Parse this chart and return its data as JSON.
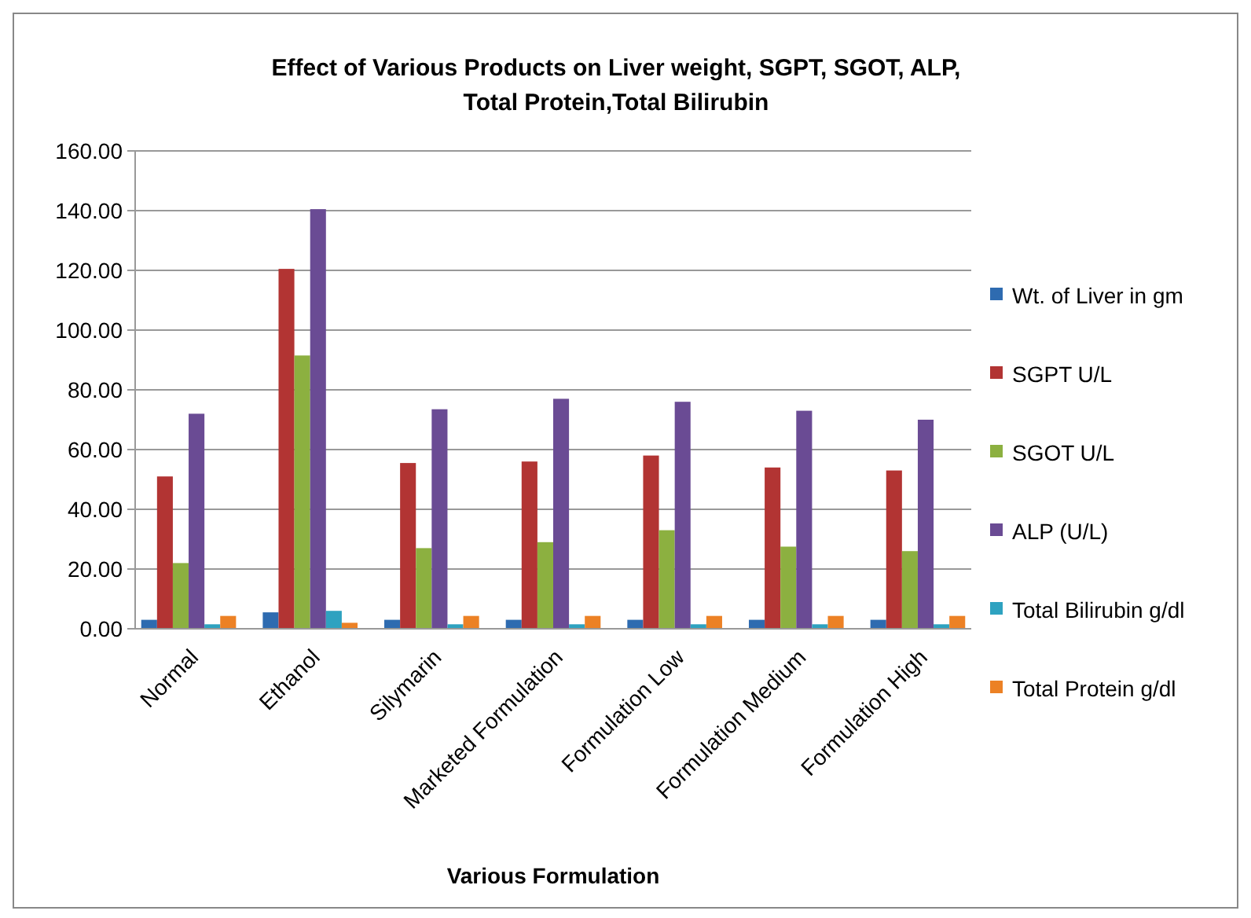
{
  "chart_data": {
    "type": "bar",
    "title": "Effect of Various Products on Liver weight, SGPT, SGOT, ALP, Total Protein,Total Bilirubin",
    "xlabel": "Various Formulation",
    "categories": [
      "Normal",
      "Ethanol",
      "Silymarin",
      "Marketed Formulation",
      "Formulation Low",
      "Formulation Medium",
      "Formulation High"
    ],
    "series": [
      {
        "name": "Wt. of Liver in gm",
        "color": "#2e6bb0",
        "values": [
          3,
          5.5,
          3,
          3,
          3,
          3,
          3
        ]
      },
      {
        "name": "SGPT U/L",
        "color": "#b23433",
        "values": [
          51,
          120.5,
          55.5,
          56,
          58,
          54,
          53
        ]
      },
      {
        "name": "SGOT U/L",
        "color": "#8cb040",
        "values": [
          22,
          91.5,
          27,
          29,
          33,
          27.5,
          26
        ]
      },
      {
        "name": "ALP (U/L)",
        "color": "#6a4b94",
        "values": [
          72,
          140.5,
          73.5,
          77,
          76,
          73,
          70
        ]
      },
      {
        "name": "Total Bilirubin g/dl",
        "color": "#2ea2c0",
        "values": [
          1.5,
          6,
          1.5,
          1.5,
          1.5,
          1.5,
          1.5
        ]
      },
      {
        "name": "Total Protein g/dl",
        "color": "#ec8125",
        "values": [
          4.3,
          2,
          4.3,
          4.3,
          4.3,
          4.3,
          4.3
        ]
      }
    ],
    "ylim": [
      0,
      160
    ],
    "yticks": [
      {
        "value": 0,
        "label": "0.00"
      },
      {
        "value": 20,
        "label": "20.00"
      },
      {
        "value": 40,
        "label": "40.00"
      },
      {
        "value": 60,
        "label": "60.00"
      },
      {
        "value": 80,
        "label": "80.00"
      },
      {
        "value": 100,
        "label": "100.00"
      },
      {
        "value": 120,
        "label": "120.00"
      },
      {
        "value": 140,
        "label": "140.00"
      },
      {
        "value": 160,
        "label": "160.00"
      }
    ],
    "grid": "y",
    "legend": "right"
  }
}
